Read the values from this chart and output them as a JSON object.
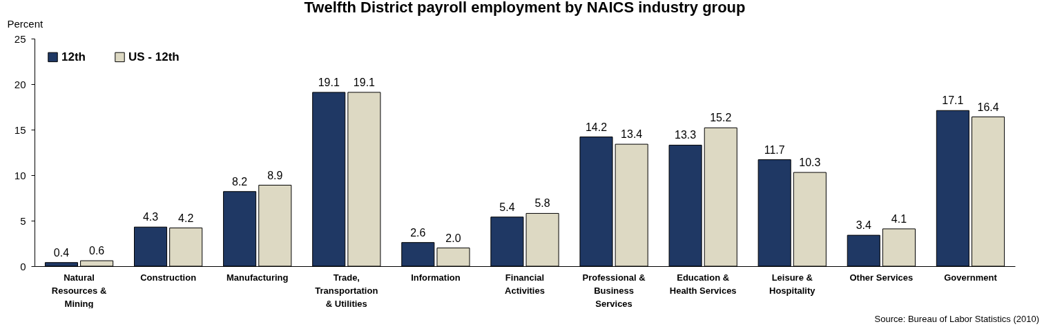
{
  "chart_data": {
    "type": "bar",
    "title": "Twelfth District payroll employment by NAICS industry group",
    "ylabel": "Percent",
    "categories": [
      "Natural Resources & Mining",
      "Construction",
      "Manufacturing",
      "Trade, Transportation & Utilities",
      "Information",
      "Financial Activities",
      "Professional & Business Services",
      "Education & Health Services",
      "Leisure & Hospitality",
      "Other Services",
      "Government"
    ],
    "series": [
      {
        "name": "12th",
        "color": "#1f3864",
        "values": [
          0.4,
          4.3,
          8.2,
          19.1,
          2.6,
          5.4,
          14.2,
          13.3,
          11.7,
          3.4,
          17.1
        ],
        "value_labels": [
          "0.4",
          "4.3",
          "8.2",
          "19.1",
          "2.6",
          "5.4",
          "14.2",
          "13.3",
          "11.7",
          "3.4",
          "17.1"
        ]
      },
      {
        "name": "US - 12th",
        "color": "#ddd9c3",
        "values": [
          0.6,
          4.2,
          8.9,
          19.1,
          2.0,
          5.8,
          13.4,
          15.2,
          10.3,
          4.1,
          16.4
        ],
        "value_labels": [
          "0.6",
          "4.2",
          "8.9",
          "19.1",
          "2.0",
          "5.8",
          "13.4",
          "15.2",
          "10.3",
          "4.1",
          "16.4"
        ]
      }
    ],
    "ylim": [
      0,
      25
    ],
    "yticks": [
      0,
      5,
      10,
      15,
      20,
      25
    ],
    "grid": false,
    "legend": "top left",
    "annotations": [
      "Source: Bureau of Labor Statistics (2010)"
    ]
  }
}
